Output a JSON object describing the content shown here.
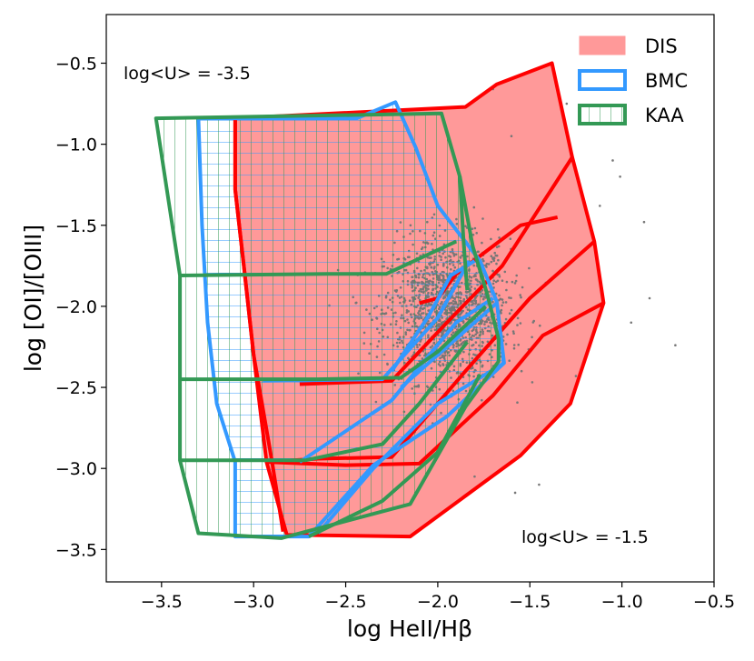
{
  "chart_data": {
    "type": "scatter",
    "xlabel": "log HeII/Hβ",
    "ylabel": "log [OI]/[OIII]",
    "xlim": [
      -3.8,
      -0.5
    ],
    "ylim": [
      -3.7,
      -0.2
    ],
    "xticks": [
      -3.5,
      -3.0,
      -2.5,
      -2.0,
      -1.5,
      -1.0,
      -0.5
    ],
    "yticks": [
      -3.5,
      -3.0,
      -2.5,
      -2.0,
      -1.5,
      -1.0,
      -0.5
    ],
    "xtick_labels": [
      "−3.5",
      "−3.0",
      "−2.5",
      "−2.0",
      "−1.5",
      "−1.0",
      "−0.5"
    ],
    "ytick_labels": [
      "−3.5",
      "−3.0",
      "−2.5",
      "−2.0",
      "−1.5",
      "−1.0",
      "−0.5"
    ],
    "grid": false,
    "legend_position": "top-right",
    "annotations": [
      {
        "text": "log<U> = -3.5",
        "x": -3.72,
        "y": -0.57
      },
      {
        "text": "log<U> = -1.5",
        "x": -1.55,
        "y": -3.43
      }
    ],
    "series": [
      {
        "name": "DIS",
        "kind": "filled-grid",
        "color": "#ff0000",
        "fill": "#ff9999",
        "outline": [
          [
            -3.1,
            -0.84
          ],
          [
            -1.85,
            -0.77
          ],
          [
            -1.68,
            -0.63
          ],
          [
            -1.38,
            -0.5
          ],
          [
            -1.27,
            -1.08
          ],
          [
            -1.15,
            -1.6
          ],
          [
            -1.1,
            -1.98
          ],
          [
            -1.28,
            -2.6
          ],
          [
            -1.55,
            -2.92
          ],
          [
            -2.15,
            -3.42
          ],
          [
            -2.82,
            -3.41
          ],
          [
            -2.93,
            -2.96
          ],
          [
            -3.0,
            -2.3
          ],
          [
            -3.05,
            -1.78
          ],
          [
            -3.1,
            -1.28
          ]
        ],
        "lines": [
          [
            [
              -2.84,
              -3.39
            ],
            [
              -2.9,
              -2.96
            ],
            [
              -3.0,
              -2.3
            ],
            [
              -3.05,
              -1.78
            ],
            [
              -3.1,
              -1.28
            ],
            [
              -3.1,
              -0.84
            ]
          ],
          [
            [
              -2.93,
              -2.96
            ],
            [
              -2.5,
              -2.98
            ],
            [
              -2.1,
              -2.97
            ],
            [
              -1.7,
              -2.55
            ],
            [
              -1.43,
              -2.18
            ],
            [
              -1.1,
              -1.98
            ]
          ],
          [
            [
              -2.93,
              -2.96
            ],
            [
              -2.65,
              -2.94
            ],
            [
              -2.25,
              -2.93
            ],
            [
              -1.85,
              -2.4
            ],
            [
              -1.5,
              -1.95
            ],
            [
              -1.15,
              -1.6
            ]
          ],
          [
            [
              -2.75,
              -2.48
            ],
            [
              -2.25,
              -2.46
            ],
            [
              -1.95,
              -2.1
            ],
            [
              -1.65,
              -1.75
            ],
            [
              -1.27,
              -1.08
            ]
          ],
          [
            [
              -1.35,
              -1.45
            ],
            [
              -1.55,
              -1.5
            ],
            [
              -1.9,
              -1.8
            ],
            [
              -2.0,
              -1.95
            ],
            [
              -2.1,
              -1.98
            ]
          ]
        ]
      },
      {
        "name": "BMC",
        "kind": "hatched-grid",
        "color": "#3399ff",
        "outline": [
          [
            -3.3,
            -0.84
          ],
          [
            -2.44,
            -0.84
          ],
          [
            -2.23,
            -0.74
          ],
          [
            -2.12,
            -1.02
          ],
          [
            -2.0,
            -1.38
          ],
          [
            -1.77,
            -1.72
          ],
          [
            -1.68,
            -1.97
          ],
          [
            -1.64,
            -2.35
          ],
          [
            -1.95,
            -2.68
          ],
          [
            -2.35,
            -2.98
          ],
          [
            -2.7,
            -3.42
          ],
          [
            -3.1,
            -3.42
          ],
          [
            -3.1,
            -2.96
          ],
          [
            -3.2,
            -2.6
          ],
          [
            -3.25,
            -2.1
          ],
          [
            -3.28,
            -1.5
          ]
        ],
        "lines": [
          [
            [
              -2.95,
              -2.46
            ],
            [
              -2.3,
              -2.45
            ],
            [
              -2.0,
              -2.07
            ],
            [
              -1.83,
              -1.72
            ]
          ],
          [
            [
              -2.75,
              -2.96
            ],
            [
              -2.25,
              -2.58
            ],
            [
              -1.9,
              -2.1
            ],
            [
              -1.7,
              -1.95
            ]
          ],
          [
            [
              -2.25,
              -2.4
            ],
            [
              -2.05,
              -2.06
            ],
            [
              -1.93,
              -1.81
            ],
            [
              -1.8,
              -1.72
            ]
          ],
          [
            [
              -2.2,
              -2.5
            ],
            [
              -1.95,
              -2.25
            ],
            [
              -1.68,
              -1.98
            ]
          ],
          [
            [
              -2.65,
              -3.4
            ],
            [
              -2.35,
              -3.0
            ],
            [
              -2.0,
              -2.6
            ],
            [
              -1.64,
              -2.35
            ]
          ]
        ]
      },
      {
        "name": "KAA",
        "kind": "vertical-hatched-grid",
        "color": "#339955",
        "outline": [
          [
            -3.53,
            -0.84
          ],
          [
            -1.98,
            -0.81
          ],
          [
            -1.88,
            -1.2
          ],
          [
            -1.81,
            -1.63
          ],
          [
            -1.73,
            -1.93
          ],
          [
            -1.67,
            -2.2
          ],
          [
            -1.67,
            -2.34
          ],
          [
            -1.85,
            -2.62
          ],
          [
            -2.15,
            -3.22
          ],
          [
            -2.85,
            -3.43
          ],
          [
            -3.3,
            -3.4
          ],
          [
            -3.4,
            -2.95
          ],
          [
            -3.4,
            -1.81
          ]
        ],
        "lines": [
          [
            [
              -3.4,
              -1.81
            ],
            [
              -2.6,
              -1.8
            ],
            [
              -2.28,
              -1.8
            ],
            [
              -1.9,
              -1.6
            ]
          ],
          [
            [
              -3.4,
              -2.45
            ],
            [
              -2.65,
              -2.45
            ],
            [
              -2.2,
              -2.44
            ],
            [
              -2.0,
              -2.28
            ],
            [
              -1.74,
              -2.0
            ]
          ],
          [
            [
              -3.4,
              -2.95
            ],
            [
              -2.72,
              -2.95
            ],
            [
              -2.3,
              -2.85
            ],
            [
              -2.1,
              -2.6
            ],
            [
              -1.84,
              -2.22
            ]
          ],
          [
            [
              -2.7,
              -3.42
            ],
            [
              -2.3,
              -3.2
            ],
            [
              -2.0,
              -2.9
            ],
            [
              -1.77,
              -2.42
            ]
          ],
          [
            [
              -1.88,
              -1.2
            ],
            [
              -1.86,
              -1.6
            ],
            [
              -1.84,
              -1.9
            ]
          ]
        ]
      },
      {
        "name": "data points",
        "kind": "points",
        "color": "#777777",
        "center": [
          -1.95,
          -2.03
        ],
        "spread": [
          0.17,
          0.22
        ],
        "count": 1400,
        "outliers": [
          [
            -0.85,
            -1.95
          ],
          [
            -0.88,
            -1.48
          ],
          [
            -0.71,
            -2.24
          ],
          [
            -1.3,
            -0.75
          ],
          [
            -1.6,
            -0.95
          ],
          [
            -1.05,
            -1.1
          ],
          [
            -1.7,
            -0.66
          ],
          [
            -1.45,
            -3.1
          ],
          [
            -1.58,
            -3.15
          ],
          [
            -1.12,
            -1.38
          ],
          [
            -1.01,
            -1.2
          ],
          [
            -1.25,
            -2.43
          ],
          [
            -1.8,
            -3.05
          ],
          [
            -0.95,
            -2.1
          ]
        ]
      }
    ]
  }
}
